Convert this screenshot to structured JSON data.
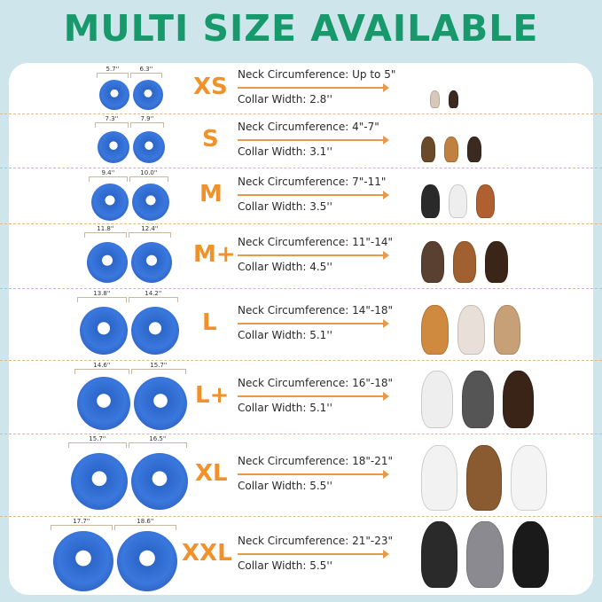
{
  "title": "MULTI SIZE AVAILABLE",
  "colors": {
    "title": "#17996b",
    "size_label": "#f0922b",
    "collar": "#3a78de",
    "background": "#cfe5ec"
  },
  "rows": [
    {
      "size": "XS",
      "dim_a": "5.7''",
      "dim_b": "6.3''",
      "neck_label": "Neck Circumference:",
      "neck": "Up to 5\"",
      "width_label": "Collar Width:",
      "width": "2.8''"
    },
    {
      "size": "S",
      "dim_a": "7.3''",
      "dim_b": "7.9''",
      "neck_label": "Neck Circumference:",
      "neck": "4\"-7\"",
      "width_label": "Collar Width:",
      "width": "3.1''"
    },
    {
      "size": "M",
      "dim_a": "9.4''",
      "dim_b": "10.0''",
      "neck_label": "Neck Circumference:",
      "neck": "7\"-11\"",
      "width_label": "Collar Width:",
      "width": "3.5''"
    },
    {
      "size": "M+",
      "dim_a": "11.8''",
      "dim_b": "12.4''",
      "neck_label": "Neck Circumference:",
      "neck": "11\"-14\"",
      "width_label": "Collar Width:",
      "width": "4.5''"
    },
    {
      "size": "L",
      "dim_a": "13.8''",
      "dim_b": "14.2''",
      "neck_label": "Neck Circumference:",
      "neck": "14\"-18\"",
      "width_label": "Collar Width:",
      "width": "5.1''"
    },
    {
      "size": "L+",
      "dim_a": "14.6''",
      "dim_b": "15.7''",
      "neck_label": "Neck Circumference:",
      "neck": "16\"-18\"",
      "width_label": "Collar Width:",
      "width": "5.1''"
    },
    {
      "size": "XL",
      "dim_a": "15.7''",
      "dim_b": "16.5''",
      "neck_label": "Neck Circumference:",
      "neck": "18\"-21\"",
      "width_label": "Collar Width:",
      "width": "5.5''"
    },
    {
      "size": "XXL",
      "dim_a": "17.7''",
      "dim_b": "18.6''",
      "neck_label": "Neck Circumference:",
      "neck": "21\"-23\"",
      "width_label": "Collar Width:",
      "width": "5.5''"
    }
  ]
}
